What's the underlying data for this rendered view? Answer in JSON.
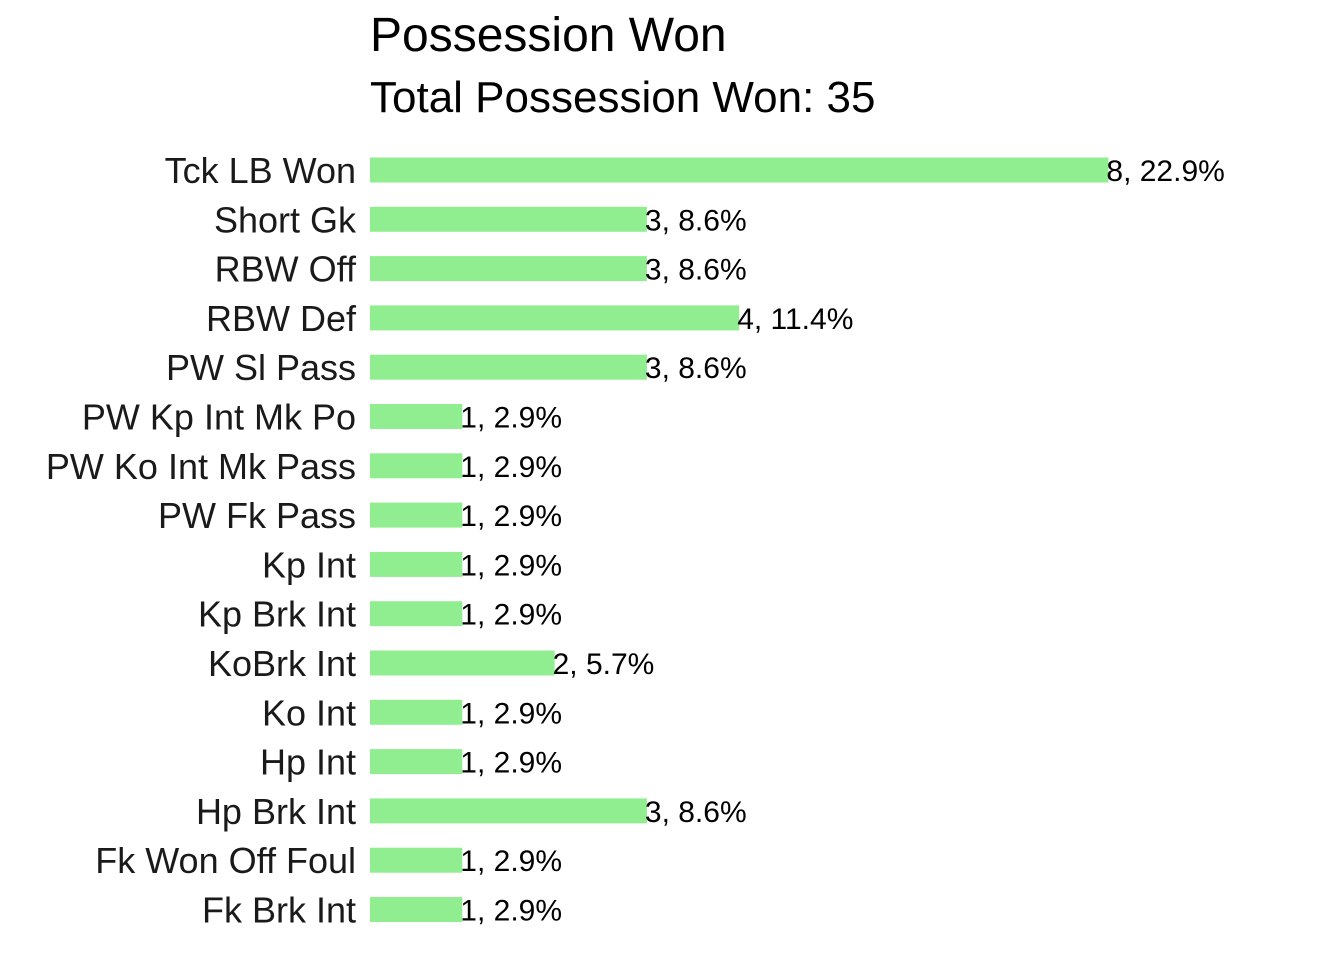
{
  "chart_data": {
    "type": "bar",
    "orientation": "horizontal",
    "title": "Possession Won",
    "subtitle": "Total Possession Won: 35",
    "bar_color": "#90ee90",
    "grid": false,
    "xlim": [
      0,
      8
    ],
    "categories": [
      "Tck LB Won",
      "Short Gk",
      "RBW Off",
      "RBW Def",
      "PW Sl Pass",
      "PW Kp Int Mk Po",
      "PW Ko Int Mk Pass",
      "PW Fk Pass",
      "Kp Int",
      "Kp Brk Int",
      "KoBrk Int",
      "Ko Int",
      "Hp Int",
      "Hp Brk Int",
      "Fk Won Off Foul",
      "Fk Brk Int"
    ],
    "values": [
      8,
      3,
      3,
      4,
      3,
      1,
      1,
      1,
      1,
      1,
      2,
      1,
      1,
      3,
      1,
      1
    ],
    "data_labels": [
      "8, 22.9%",
      "3, 8.6%",
      "3, 8.6%",
      "4, 11.4%",
      "3, 8.6%",
      "1, 2.9%",
      "1, 2.9%",
      "1, 2.9%",
      "1, 2.9%",
      "1, 2.9%",
      "2, 5.7%",
      "1, 2.9%",
      "1, 2.9%",
      "3, 8.6%",
      "1, 2.9%",
      "1, 2.9%"
    ]
  }
}
